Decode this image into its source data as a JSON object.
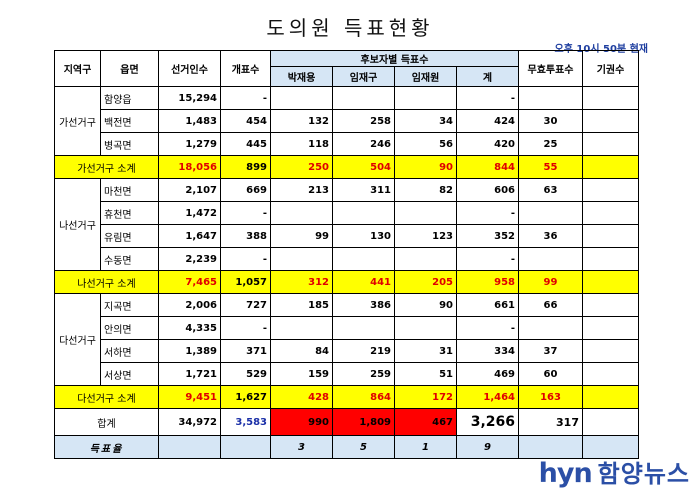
{
  "title": "도의원 득표현황",
  "time_note": "오후 10시 50분 현재",
  "headers": {
    "region": "지역구",
    "town": "읍면",
    "voters": "선거인수",
    "counted": "개표수",
    "candidates_group": "후보자별 득표수",
    "total": "계",
    "invalid": "무효투표수",
    "abstain": "기권수",
    "candidates": [
      "박재용",
      "임재구",
      "임재원"
    ]
  },
  "districts": [
    {
      "name": "가선거구",
      "rows": [
        {
          "town": "함양읍",
          "voters": "15,294",
          "counted": "-",
          "c1": "",
          "c2": "",
          "c3": "",
          "total": "-",
          "invalid": ""
        },
        {
          "town": "백전면",
          "voters": "1,483",
          "counted": "454",
          "c1": "132",
          "c2": "258",
          "c3": "34",
          "total": "424",
          "invalid": "30"
        },
        {
          "town": "병곡면",
          "voters": "1,279",
          "counted": "445",
          "c1": "118",
          "c2": "246",
          "c3": "56",
          "total": "420",
          "invalid": "25"
        }
      ],
      "subtotal": {
        "label": "가선거구 소계",
        "voters": "18,056",
        "counted": "899",
        "c1": "250",
        "c2": "504",
        "c3": "90",
        "total": "844",
        "invalid": "55"
      }
    },
    {
      "name": "나선거구",
      "rows": [
        {
          "town": "마천면",
          "voters": "2,107",
          "counted": "669",
          "c1": "213",
          "c2": "311",
          "c3": "82",
          "total": "606",
          "invalid": "63"
        },
        {
          "town": "휴천면",
          "voters": "1,472",
          "counted": "-",
          "c1": "",
          "c2": "",
          "c3": "",
          "total": "-",
          "invalid": ""
        },
        {
          "town": "유림면",
          "voters": "1,647",
          "counted": "388",
          "c1": "99",
          "c2": "130",
          "c3": "123",
          "total": "352",
          "invalid": "36"
        },
        {
          "town": "수동면",
          "voters": "2,239",
          "counted": "-",
          "c1": "",
          "c2": "",
          "c3": "",
          "total": "-",
          "invalid": ""
        }
      ],
      "subtotal": {
        "label": "나선거구 소계",
        "voters": "7,465",
        "counted": "1,057",
        "c1": "312",
        "c2": "441",
        "c3": "205",
        "total": "958",
        "invalid": "99"
      }
    },
    {
      "name": "다선거구",
      "rows": [
        {
          "town": "지곡면",
          "voters": "2,006",
          "counted": "727",
          "c1": "185",
          "c2": "386",
          "c3": "90",
          "total": "661",
          "invalid": "66"
        },
        {
          "town": "안의면",
          "voters": "4,335",
          "counted": "-",
          "c1": "",
          "c2": "",
          "c3": "",
          "total": "-",
          "invalid": ""
        },
        {
          "town": "서하면",
          "voters": "1,389",
          "counted": "371",
          "c1": "84",
          "c2": "219",
          "c3": "31",
          "total": "334",
          "invalid": "37"
        },
        {
          "town": "서상면",
          "voters": "1,721",
          "counted": "529",
          "c1": "159",
          "c2": "259",
          "c3": "51",
          "total": "469",
          "invalid": "60"
        }
      ],
      "subtotal": {
        "label": "다선거구 소계",
        "voters": "9,451",
        "counted": "1,627",
        "c1": "428",
        "c2": "864",
        "c3": "172",
        "total": "1,464",
        "invalid": "163"
      }
    }
  ],
  "grand_total": {
    "label": "합계",
    "voters": "34,972",
    "counted": "3,583",
    "c1": "990",
    "c2": "1,809",
    "c3": "467",
    "total": "3,266",
    "invalid": "317"
  },
  "vote_rate": {
    "label": "득표율",
    "c1": "3",
    "c2": "5",
    "c3": "1",
    "total": "9"
  },
  "logo": {
    "en": "hyn",
    "ko": "함양뉴스",
    "color": "#2b4fa6"
  },
  "colors": {
    "subtotal_bg": "#ffff00",
    "subtotal_text": "#e00000",
    "highlight_bg": "#ff0000",
    "header_bg": "#d6e6f5",
    "number_blue": "#1a2fa8"
  }
}
